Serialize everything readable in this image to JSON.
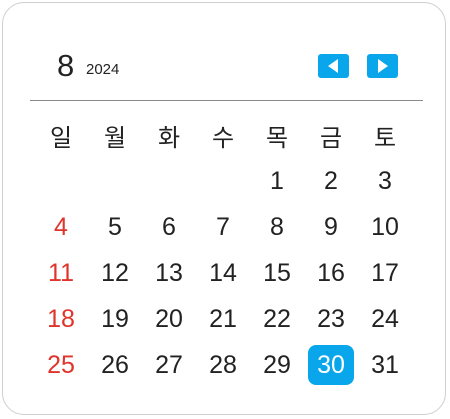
{
  "header": {
    "month": "8",
    "year": "2024",
    "prev_icon": "triangle-left-icon",
    "next_icon": "triangle-right-icon"
  },
  "colors": {
    "accent": "#0aa6ec",
    "sunday": "#e0332a",
    "text": "#222222"
  },
  "weekdays": [
    "일",
    "월",
    "화",
    "수",
    "목",
    "금",
    "토"
  ],
  "weeks": [
    [
      "",
      "",
      "",
      "",
      "1",
      "2",
      "3"
    ],
    [
      "4",
      "5",
      "6",
      "7",
      "8",
      "9",
      "10"
    ],
    [
      "11",
      "12",
      "13",
      "14",
      "15",
      "16",
      "17"
    ],
    [
      "18",
      "19",
      "20",
      "21",
      "22",
      "23",
      "24"
    ],
    [
      "25",
      "26",
      "27",
      "28",
      "29",
      "30",
      "31"
    ]
  ],
  "selected_day": "30"
}
